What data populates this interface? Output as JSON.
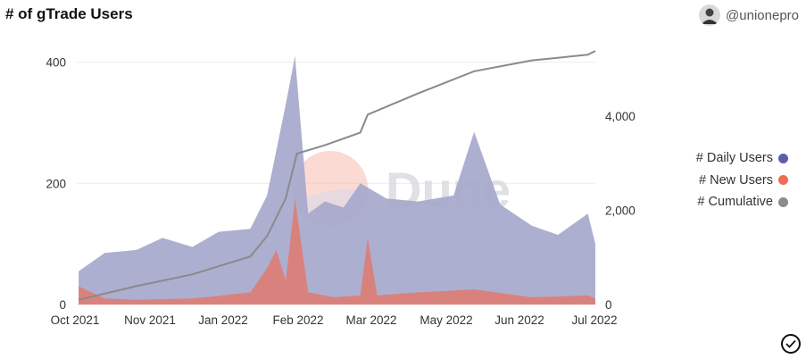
{
  "header": {
    "title": "# of gTrade Users",
    "author": "@unionepro",
    "avatar_icon": "user-avatar-icon"
  },
  "watermark": {
    "text": "Dune",
    "color": "#d9d9df",
    "logo_colors": [
      "#f4ad9c",
      "#d6d8ea"
    ]
  },
  "colors": {
    "daily": "#a6a8cc",
    "new": "#e07a6e",
    "cumulative": "#8a8a8a"
  },
  "legend": [
    {
      "label": "# Daily Users",
      "color": "#5b5ea8"
    },
    {
      "label": "# New Users",
      "color": "#eb6e55"
    },
    {
      "label": "# Cumulative",
      "color": "#8c8c8c"
    }
  ],
  "chart_data": {
    "type": "area",
    "x_range": [
      "2021-09-30",
      "2022-07-05"
    ],
    "x_tick_labels": [
      "Oct 2021",
      "Nov 2021",
      "Jan 2022",
      "Feb 2022",
      "Mar 2022",
      "May 2022",
      "Jun 2022",
      "Jul 2022"
    ],
    "y_left": {
      "ticks": [
        "0",
        "200",
        "400"
      ],
      "range": [
        0,
        420
      ]
    },
    "y_right": {
      "ticks": [
        "0",
        "2,000",
        "4,000"
      ],
      "range": [
        0,
        5400
      ]
    },
    "grid": "horizontal",
    "series": [
      {
        "name": "# Daily Users",
        "axis": "left",
        "style": "area",
        "points": [
          [
            "2021-10-01",
            55
          ],
          [
            "2021-10-15",
            85
          ],
          [
            "2021-11-01",
            90
          ],
          [
            "2021-11-15",
            110
          ],
          [
            "2021-12-01",
            95
          ],
          [
            "2021-12-15",
            120
          ],
          [
            "2022-01-01",
            125
          ],
          [
            "2022-01-10",
            180
          ],
          [
            "2022-01-20",
            330
          ],
          [
            "2022-01-25",
            410
          ],
          [
            "2022-02-01",
            150
          ],
          [
            "2022-02-10",
            170
          ],
          [
            "2022-02-20",
            160
          ],
          [
            "2022-03-01",
            200
          ],
          [
            "2022-03-15",
            175
          ],
          [
            "2022-04-01",
            170
          ],
          [
            "2022-04-20",
            180
          ],
          [
            "2022-05-01",
            285
          ],
          [
            "2022-05-15",
            165
          ],
          [
            "2022-06-01",
            130
          ],
          [
            "2022-06-15",
            115
          ],
          [
            "2022-07-01",
            150
          ],
          [
            "2022-07-05",
            100
          ]
        ]
      },
      {
        "name": "# New Users",
        "axis": "left",
        "style": "area",
        "points": [
          [
            "2021-10-01",
            30
          ],
          [
            "2021-10-15",
            10
          ],
          [
            "2021-11-01",
            8
          ],
          [
            "2021-12-01",
            10
          ],
          [
            "2022-01-01",
            20
          ],
          [
            "2022-01-10",
            60
          ],
          [
            "2022-01-15",
            90
          ],
          [
            "2022-01-20",
            40
          ],
          [
            "2022-01-25",
            175
          ],
          [
            "2022-02-01",
            20
          ],
          [
            "2022-02-15",
            12
          ],
          [
            "2022-03-01",
            15
          ],
          [
            "2022-03-05",
            110
          ],
          [
            "2022-03-10",
            15
          ],
          [
            "2022-04-01",
            20
          ],
          [
            "2022-05-01",
            25
          ],
          [
            "2022-06-01",
            12
          ],
          [
            "2022-07-01",
            15
          ],
          [
            "2022-07-05",
            10
          ]
        ]
      },
      {
        "name": "# Cumulative",
        "axis": "right",
        "style": "line",
        "points": [
          [
            "2021-10-01",
            100
          ],
          [
            "2021-11-01",
            390
          ],
          [
            "2021-12-01",
            640
          ],
          [
            "2022-01-01",
            1020
          ],
          [
            "2022-01-10",
            1450
          ],
          [
            "2022-01-20",
            2250
          ],
          [
            "2022-01-26",
            3200
          ],
          [
            "2022-02-10",
            3380
          ],
          [
            "2022-03-01",
            3650
          ],
          [
            "2022-03-05",
            4030
          ],
          [
            "2022-04-01",
            4480
          ],
          [
            "2022-05-01",
            4950
          ],
          [
            "2022-06-01",
            5180
          ],
          [
            "2022-07-01",
            5300
          ],
          [
            "2022-07-05",
            5380
          ]
        ]
      }
    ]
  }
}
